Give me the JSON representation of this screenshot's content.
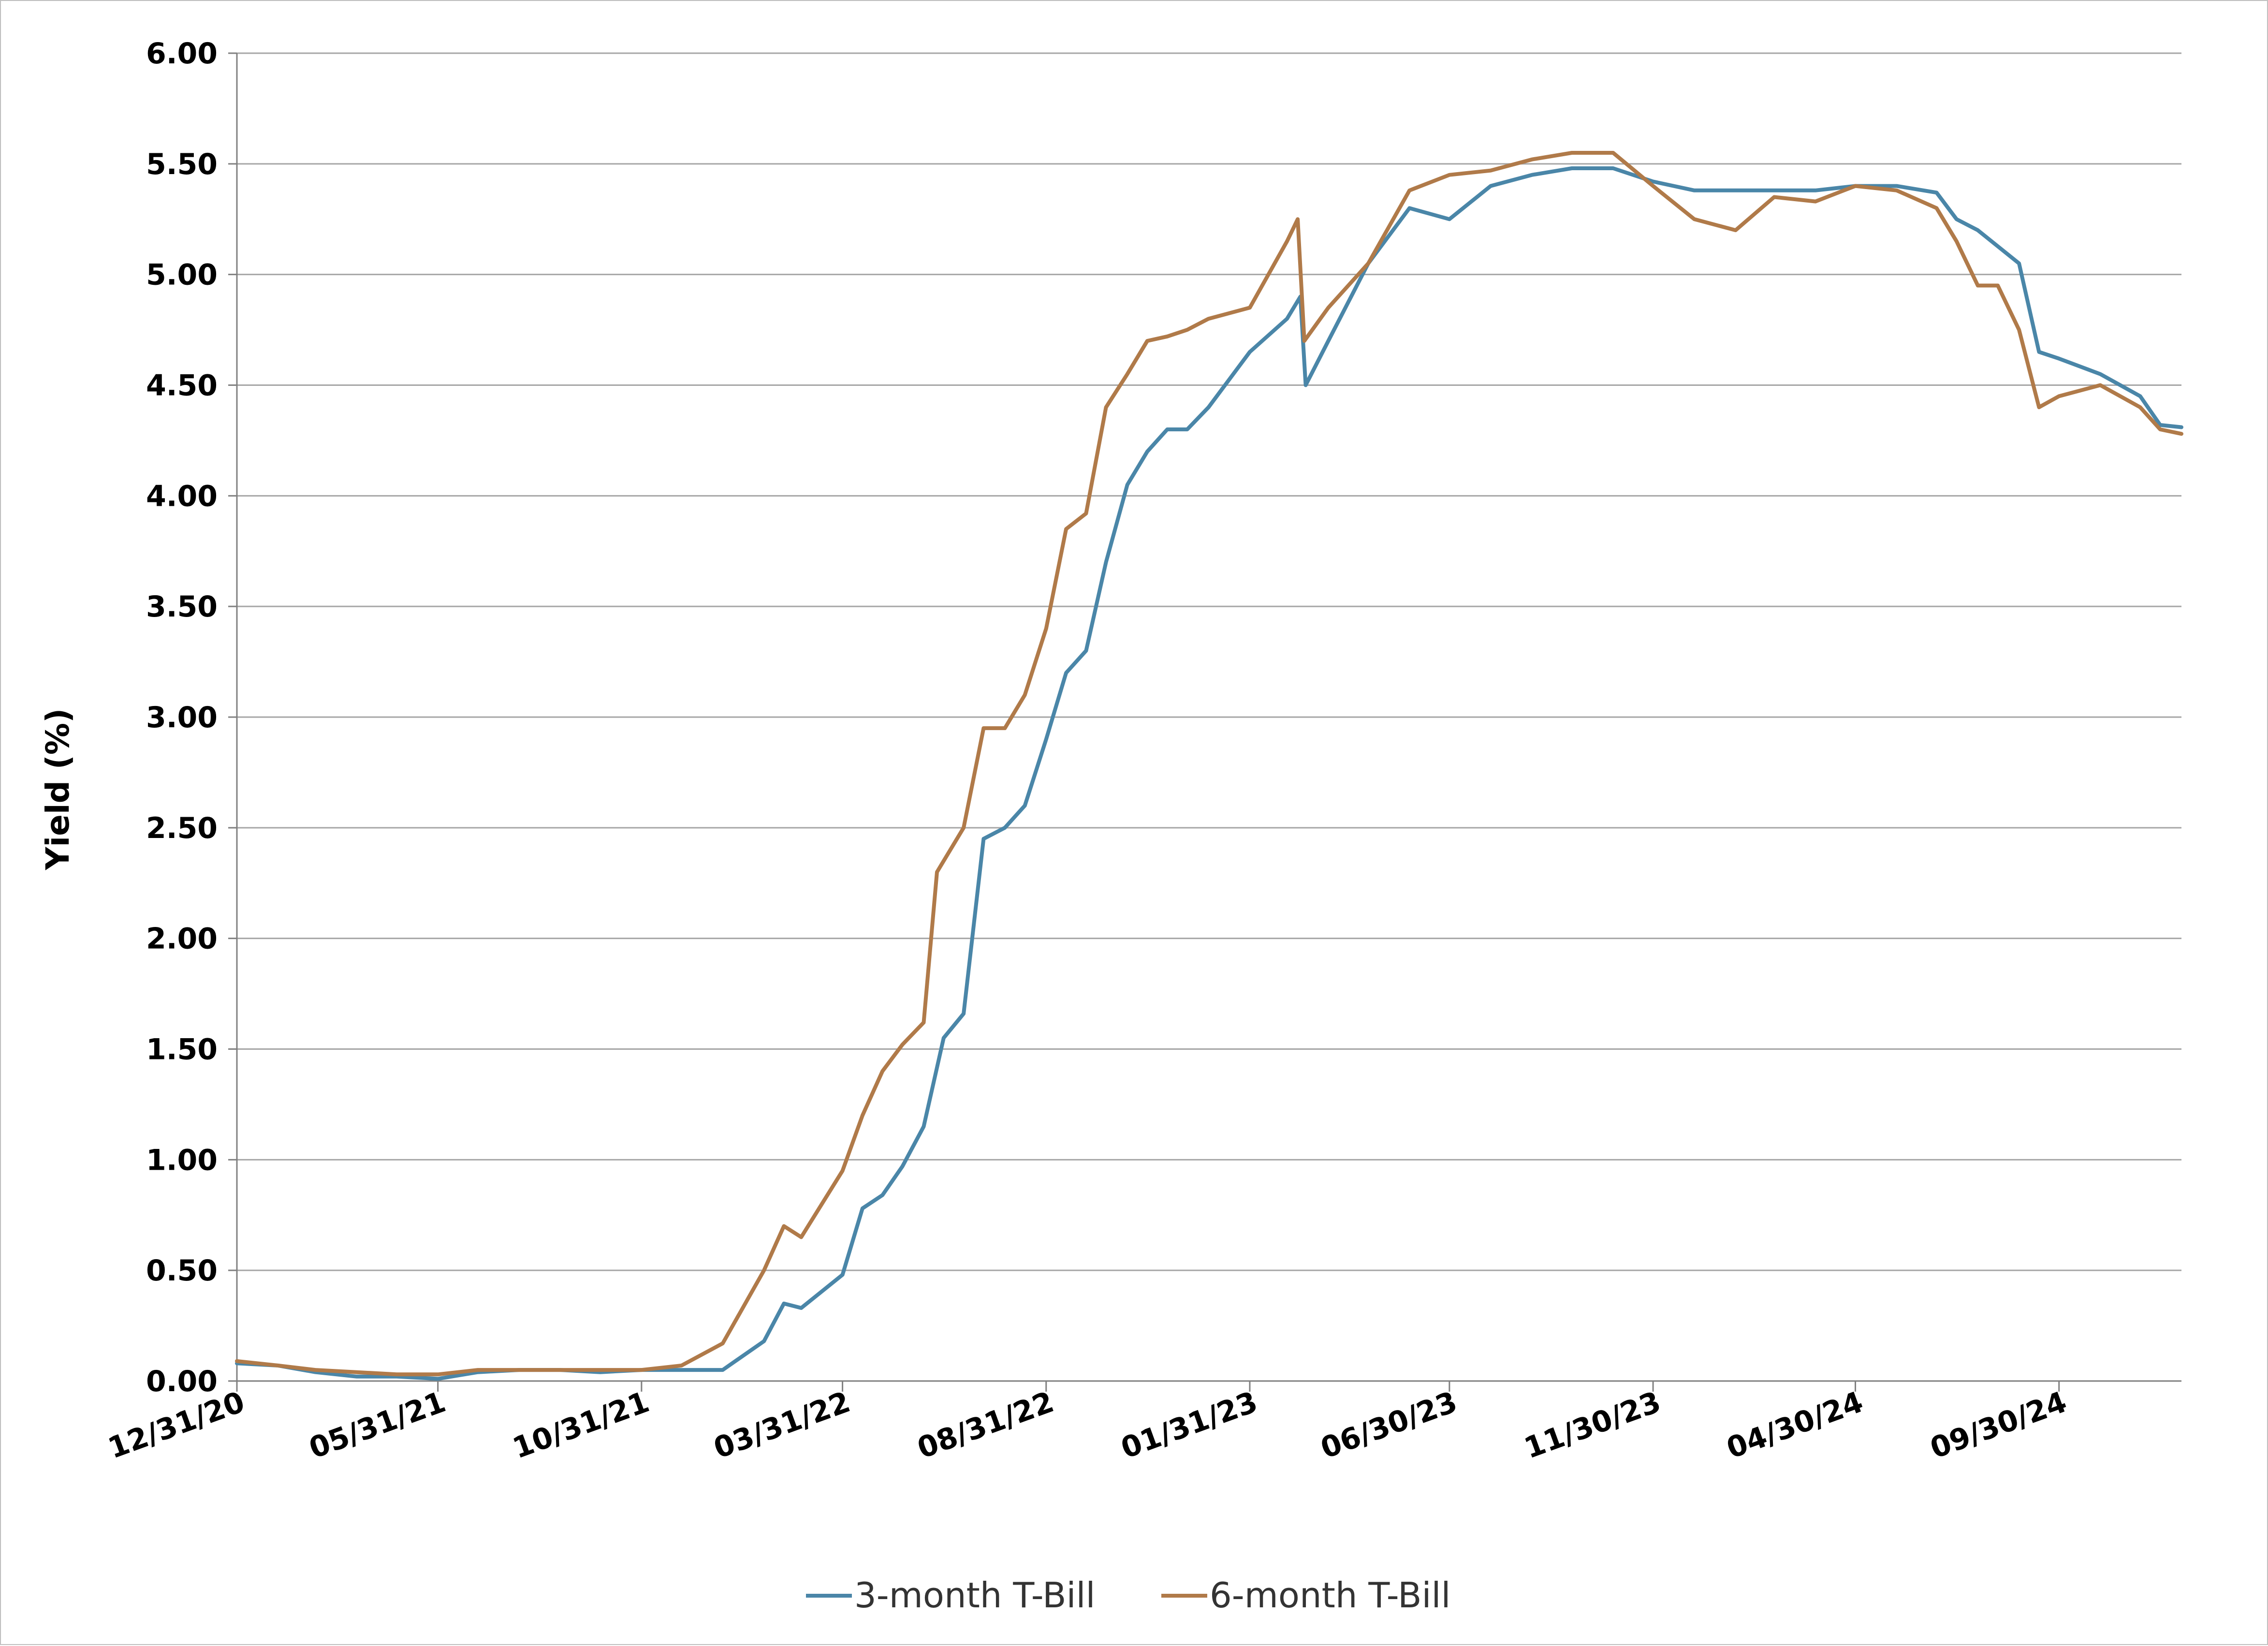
{
  "chart_data": {
    "type": "line",
    "title": "",
    "ylabel": "Yield (%)",
    "xlabel": "",
    "ylim": [
      0,
      6
    ],
    "y_ticks": [
      "0.00",
      "0.50",
      "1.00",
      "1.50",
      "2.00",
      "2.50",
      "3.00",
      "3.50",
      "4.00",
      "4.50",
      "5.00",
      "5.50",
      "6.00"
    ],
    "x_range": [
      "2020-12-31",
      "2024-12-31"
    ],
    "x_ticks": [
      {
        "date": "2020-12-31",
        "label": "12/31/20"
      },
      {
        "date": "2021-05-31",
        "label": "05/31/21"
      },
      {
        "date": "2021-10-31",
        "label": "10/31/21"
      },
      {
        "date": "2022-03-31",
        "label": "03/31/22"
      },
      {
        "date": "2022-08-31",
        "label": "08/31/22"
      },
      {
        "date": "2023-01-31",
        "label": "01/31/23"
      },
      {
        "date": "2023-06-30",
        "label": "06/30/23"
      },
      {
        "date": "2023-11-30",
        "label": "11/30/23"
      },
      {
        "date": "2024-04-30",
        "label": "04/30/24"
      },
      {
        "date": "2024-09-30",
        "label": "09/30/24"
      }
    ],
    "grid": true,
    "legend_position": "bottom",
    "series": [
      {
        "name": "3-month T-Bill",
        "color": "#4a86a8",
        "points": [
          [
            "2020-12-31",
            0.08
          ],
          [
            "2021-01-31",
            0.07
          ],
          [
            "2021-02-28",
            0.04
          ],
          [
            "2021-03-31",
            0.02
          ],
          [
            "2021-04-30",
            0.02
          ],
          [
            "2021-05-31",
            0.01
          ],
          [
            "2021-06-30",
            0.04
          ],
          [
            "2021-07-31",
            0.05
          ],
          [
            "2021-08-31",
            0.05
          ],
          [
            "2021-09-30",
            0.04
          ],
          [
            "2021-10-31",
            0.05
          ],
          [
            "2021-11-30",
            0.05
          ],
          [
            "2021-12-31",
            0.05
          ],
          [
            "2022-01-31",
            0.18
          ],
          [
            "2022-02-15",
            0.35
          ],
          [
            "2022-02-28",
            0.33
          ],
          [
            "2022-03-31",
            0.48
          ],
          [
            "2022-04-15",
            0.78
          ],
          [
            "2022-04-30",
            0.84
          ],
          [
            "2022-05-15",
            0.97
          ],
          [
            "2022-05-31",
            1.15
          ],
          [
            "2022-06-15",
            1.55
          ],
          [
            "2022-06-30",
            1.66
          ],
          [
            "2022-07-15",
            2.45
          ],
          [
            "2022-07-31",
            2.5
          ],
          [
            "2022-08-15",
            2.6
          ],
          [
            "2022-08-31",
            2.9
          ],
          [
            "2022-09-15",
            3.2
          ],
          [
            "2022-09-30",
            3.3
          ],
          [
            "2022-10-15",
            3.7
          ],
          [
            "2022-10-31",
            4.05
          ],
          [
            "2022-11-15",
            4.2
          ],
          [
            "2022-11-30",
            4.3
          ],
          [
            "2022-12-15",
            4.3
          ],
          [
            "2022-12-31",
            4.4
          ],
          [
            "2023-01-31",
            4.65
          ],
          [
            "2023-02-28",
            4.8
          ],
          [
            "2023-03-10",
            4.9
          ],
          [
            "2023-03-14",
            4.5
          ],
          [
            "2023-03-31",
            4.7
          ],
          [
            "2023-04-30",
            5.05
          ],
          [
            "2023-05-31",
            5.3
          ],
          [
            "2023-06-30",
            5.25
          ],
          [
            "2023-07-31",
            5.4
          ],
          [
            "2023-08-31",
            5.45
          ],
          [
            "2023-09-30",
            5.48
          ],
          [
            "2023-10-31",
            5.48
          ],
          [
            "2023-11-30",
            5.42
          ],
          [
            "2023-12-31",
            5.38
          ],
          [
            "2024-01-31",
            5.38
          ],
          [
            "2024-02-29",
            5.38
          ],
          [
            "2024-03-31",
            5.38
          ],
          [
            "2024-04-30",
            5.4
          ],
          [
            "2024-05-31",
            5.4
          ],
          [
            "2024-06-30",
            5.37
          ],
          [
            "2024-07-15",
            5.25
          ],
          [
            "2024-07-31",
            5.2
          ],
          [
            "2024-08-31",
            5.05
          ],
          [
            "2024-09-15",
            4.65
          ],
          [
            "2024-09-30",
            4.62
          ],
          [
            "2024-10-31",
            4.55
          ],
          [
            "2024-11-30",
            4.45
          ],
          [
            "2024-12-15",
            4.32
          ],
          [
            "2024-12-31",
            4.31
          ]
        ]
      },
      {
        "name": "6-month T-Bill",
        "color": "#b07a49",
        "points": [
          [
            "2020-12-31",
            0.09
          ],
          [
            "2021-01-31",
            0.07
          ],
          [
            "2021-02-28",
            0.05
          ],
          [
            "2021-03-31",
            0.04
          ],
          [
            "2021-04-30",
            0.03
          ],
          [
            "2021-05-31",
            0.03
          ],
          [
            "2021-06-30",
            0.05
          ],
          [
            "2021-07-31",
            0.05
          ],
          [
            "2021-08-31",
            0.05
          ],
          [
            "2021-09-30",
            0.05
          ],
          [
            "2021-10-31",
            0.05
          ],
          [
            "2021-11-30",
            0.07
          ],
          [
            "2021-12-31",
            0.17
          ],
          [
            "2022-01-31",
            0.5
          ],
          [
            "2022-02-15",
            0.7
          ],
          [
            "2022-02-28",
            0.65
          ],
          [
            "2022-03-31",
            0.95
          ],
          [
            "2022-04-15",
            1.2
          ],
          [
            "2022-04-30",
            1.4
          ],
          [
            "2022-05-15",
            1.52
          ],
          [
            "2022-05-31",
            1.62
          ],
          [
            "2022-06-10",
            2.3
          ],
          [
            "2022-06-30",
            2.5
          ],
          [
            "2022-07-15",
            2.95
          ],
          [
            "2022-07-31",
            2.95
          ],
          [
            "2022-08-15",
            3.1
          ],
          [
            "2022-08-31",
            3.4
          ],
          [
            "2022-09-15",
            3.85
          ],
          [
            "2022-09-30",
            3.92
          ],
          [
            "2022-10-15",
            4.4
          ],
          [
            "2022-10-31",
            4.55
          ],
          [
            "2022-11-15",
            4.7
          ],
          [
            "2022-11-30",
            4.72
          ],
          [
            "2022-12-15",
            4.75
          ],
          [
            "2022-12-31",
            4.8
          ],
          [
            "2023-01-31",
            4.85
          ],
          [
            "2023-02-28",
            5.15
          ],
          [
            "2023-03-08",
            5.25
          ],
          [
            "2023-03-13",
            4.7
          ],
          [
            "2023-03-31",
            4.85
          ],
          [
            "2023-04-30",
            5.05
          ],
          [
            "2023-05-31",
            5.38
          ],
          [
            "2023-06-30",
            5.45
          ],
          [
            "2023-07-31",
            5.47
          ],
          [
            "2023-08-31",
            5.52
          ],
          [
            "2023-09-30",
            5.55
          ],
          [
            "2023-10-31",
            5.55
          ],
          [
            "2023-11-30",
            5.4
          ],
          [
            "2023-12-31",
            5.25
          ],
          [
            "2024-01-31",
            5.2
          ],
          [
            "2024-02-29",
            5.35
          ],
          [
            "2024-03-31",
            5.33
          ],
          [
            "2024-04-30",
            5.4
          ],
          [
            "2024-05-31",
            5.38
          ],
          [
            "2024-06-30",
            5.3
          ],
          [
            "2024-07-15",
            5.15
          ],
          [
            "2024-07-31",
            4.95
          ],
          [
            "2024-08-15",
            4.95
          ],
          [
            "2024-08-31",
            4.75
          ],
          [
            "2024-09-15",
            4.4
          ],
          [
            "2024-09-30",
            4.45
          ],
          [
            "2024-10-31",
            4.5
          ],
          [
            "2024-11-30",
            4.4
          ],
          [
            "2024-12-15",
            4.3
          ],
          [
            "2024-12-31",
            4.28
          ]
        ]
      }
    ]
  }
}
